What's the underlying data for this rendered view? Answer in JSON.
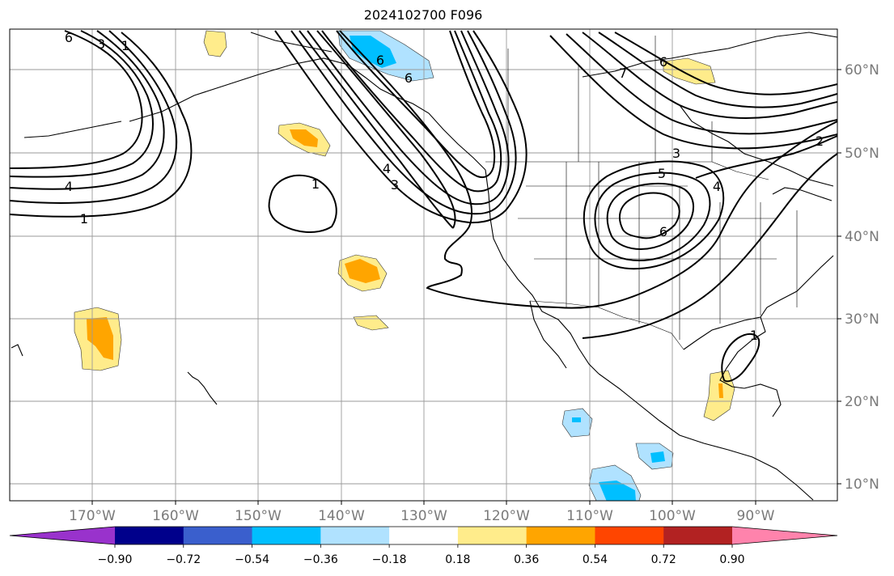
{
  "title": "2024102700 F096",
  "latitude_labels": [
    "60°N",
    "50°N",
    "40°N",
    "30°N",
    "20°N",
    "10°N"
  ],
  "longitude_labels": [
    "170°W",
    "160°W",
    "150°W",
    "140°W",
    "130°W",
    "120°W",
    "110°W",
    "100°W",
    "90°W"
  ],
  "contour_labels": [
    "6",
    "3",
    "1",
    "4",
    "1",
    "6",
    "6",
    "4",
    "3",
    "7",
    "6",
    "1",
    "3",
    "5",
    "6",
    "4",
    "2",
    "1"
  ],
  "colorbar": {
    "ticks": [
      "−0.90",
      "−0.72",
      "−0.54",
      "−0.36",
      "−0.18",
      "0.18",
      "0.36",
      "0.54",
      "0.72",
      "0.90"
    ],
    "colors": [
      "#9932cc",
      "#00008b",
      "#3a5fcd",
      "#00bfff",
      "#b0e2ff",
      "#ffffff",
      "#ffec8b",
      "#ffa500",
      "#ff4500",
      "#b22222",
      "#ff83ac"
    ]
  },
  "fill_colors": {
    "light_yellow": "#ffec8b",
    "orange": "#ffa500",
    "light_blue": "#b0e2ff",
    "deep_sky_blue": "#00bfff"
  }
}
